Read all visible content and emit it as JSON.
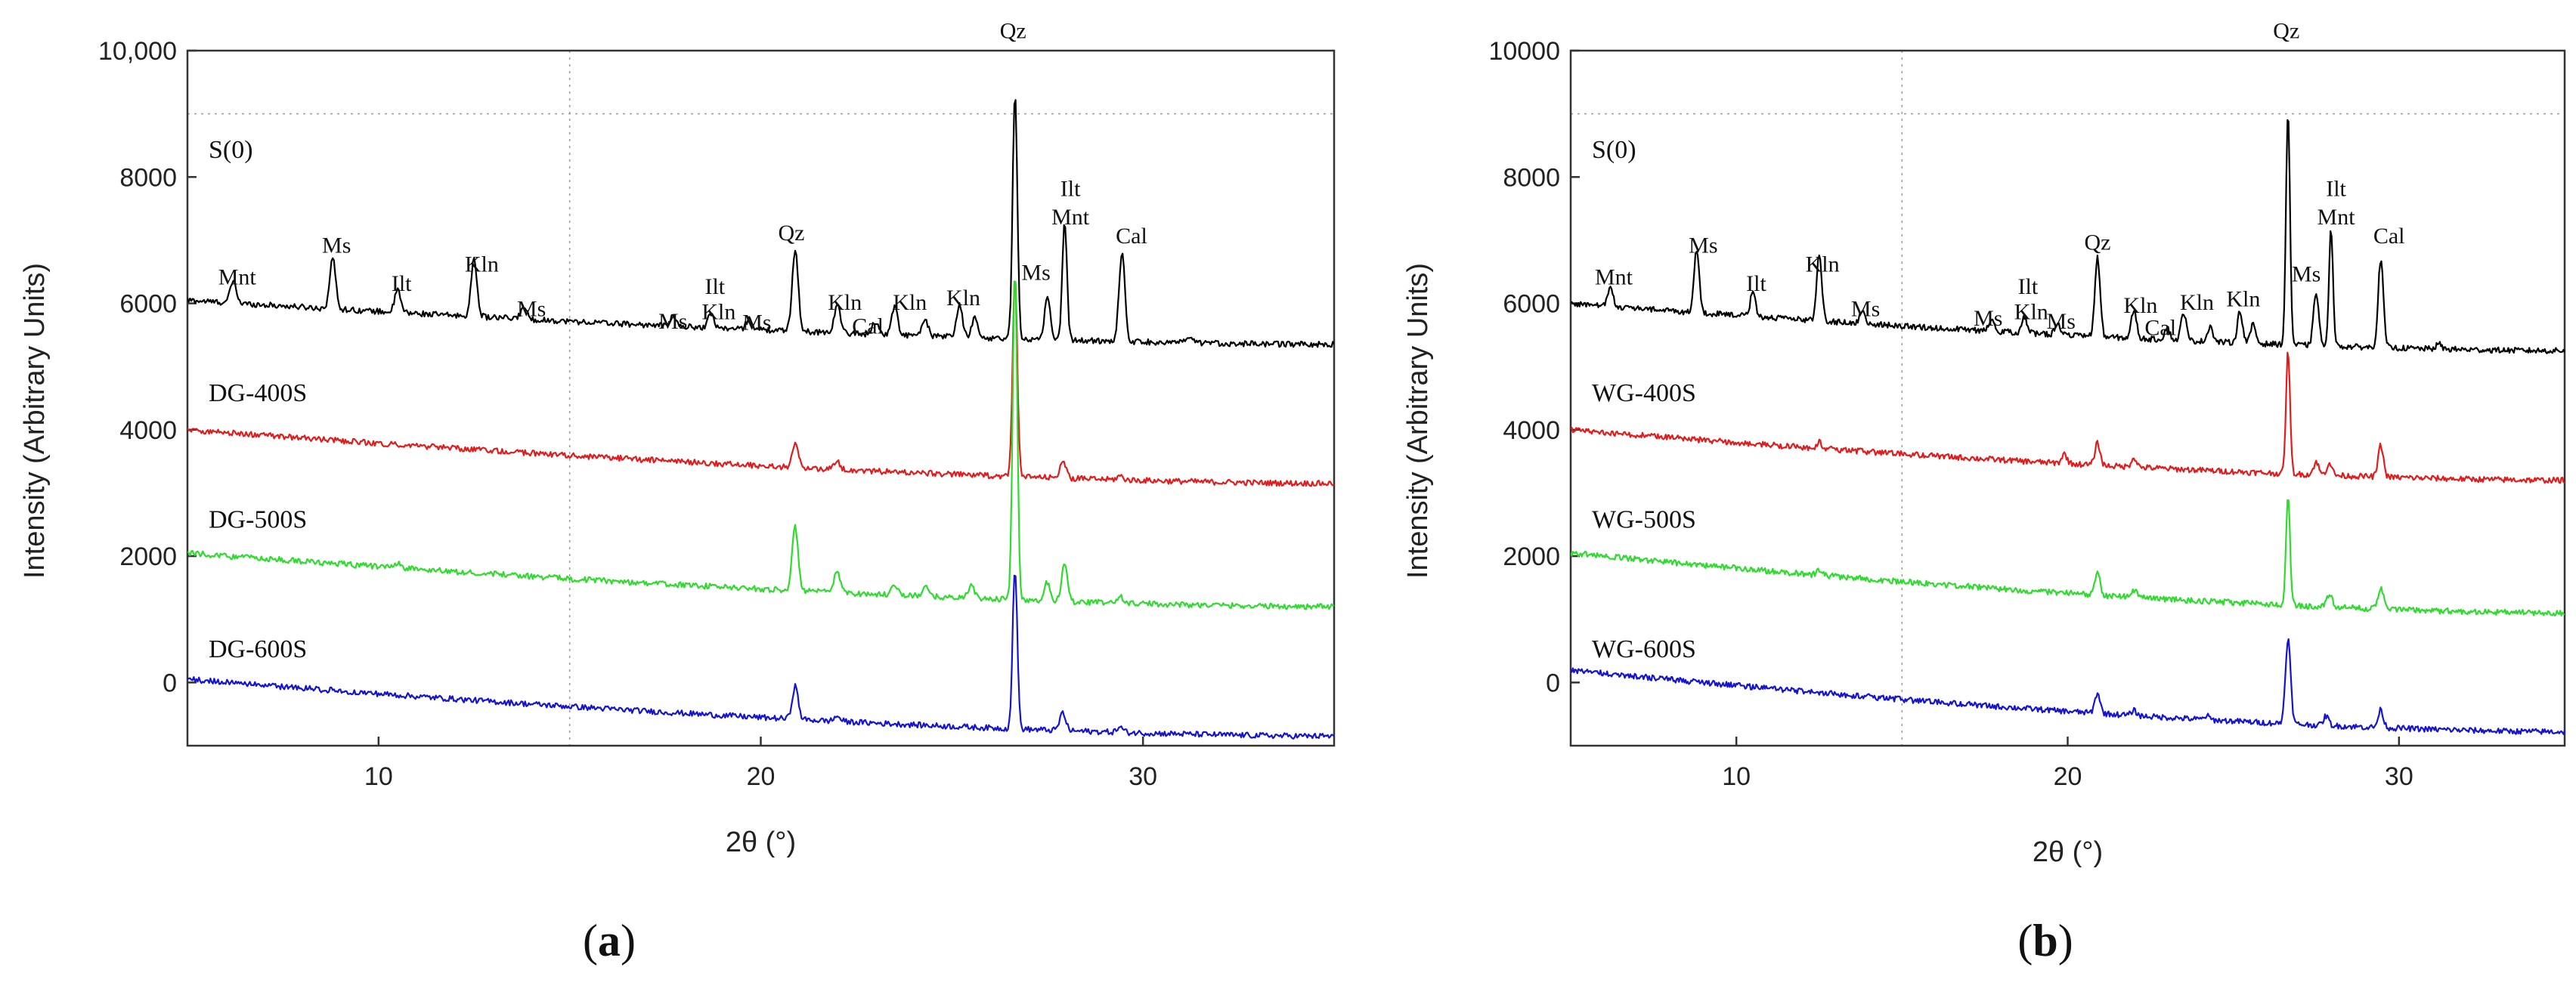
{
  "chart_data": [
    {
      "type": "line",
      "panel_label": "a",
      "xlabel": "2θ (°)",
      "ylabel": "Intensity (Arbitrary Units)",
      "xlim": [
        5,
        35
      ],
      "ylim": [
        -1000,
        10000
      ],
      "x_ticks": [
        10,
        20,
        30
      ],
      "x_tick_labels": [
        "10",
        "20",
        "30"
      ],
      "y_ticks": [
        0,
        2000,
        4000,
        6000,
        8000,
        10000
      ],
      "y_tick_labels": [
        "0",
        "2000",
        "4000",
        "6000",
        "8000",
        "10,000"
      ],
      "grid": true,
      "series": [
        {
          "name": "S(0)",
          "color": "#000000",
          "baseline_start": 6050,
          "baseline_end": 5350,
          "peaks": [
            [
              6.2,
              350
            ],
            [
              8.8,
              800
            ],
            [
              10.5,
              350
            ],
            [
              12.5,
              900
            ],
            [
              13.8,
              200
            ],
            [
              17.7,
              150
            ],
            [
              18.7,
              220
            ],
            [
              19.7,
              180
            ],
            [
              20.9,
              1300
            ],
            [
              22.0,
              450
            ],
            [
              23.0,
              200
            ],
            [
              23.5,
              450
            ],
            [
              24.3,
              250
            ],
            [
              25.2,
              500
            ],
            [
              25.6,
              300
            ],
            [
              26.65,
              3900
            ],
            [
              27.5,
              650
            ],
            [
              27.95,
              1900
            ],
            [
              29.45,
              1400
            ],
            [
              31.2,
              80
            ]
          ]
        },
        {
          "name": "DG-400S",
          "color": "#e11c1c",
          "baseline_start": 4000,
          "baseline_end": 3150,
          "peaks": [
            [
              20.9,
              380
            ],
            [
              22.0,
              120
            ],
            [
              26.65,
              3200
            ],
            [
              27.9,
              280
            ],
            [
              29.4,
              60
            ]
          ]
        },
        {
          "name": "DG-500S",
          "color": "#2edb2e",
          "baseline_start": 2050,
          "baseline_end": 1200,
          "peaks": [
            [
              10.5,
              80
            ],
            [
              20.9,
              1000
            ],
            [
              22.0,
              350
            ],
            [
              23.5,
              180
            ],
            [
              24.3,
              150
            ],
            [
              25.5,
              200
            ],
            [
              26.65,
              5200
            ],
            [
              27.5,
              300
            ],
            [
              27.95,
              600
            ],
            [
              29.4,
              100
            ]
          ]
        },
        {
          "name": "DG-600S",
          "color": "#1414d2",
          "baseline_start": 50,
          "baseline_end": -850,
          "peaks": [
            [
              20.9,
              520
            ],
            [
              22.0,
              80
            ],
            [
              26.65,
              2550
            ],
            [
              27.9,
              280
            ],
            [
              29.4,
              80
            ]
          ]
        }
      ],
      "annotations": [
        {
          "text": "Mnt",
          "x": 6.3,
          "y": 6300
        },
        {
          "text": "Ms",
          "x": 8.9,
          "y": 6800
        },
        {
          "text": "Ilt",
          "x": 10.6,
          "y": 6200
        },
        {
          "text": "Kln",
          "x": 12.7,
          "y": 6500
        },
        {
          "text": "Ms",
          "x": 14.0,
          "y": 5800
        },
        {
          "text": "Ms",
          "x": 17.7,
          "y": 5600
        },
        {
          "text": "Ilt",
          "x": 18.8,
          "y": 6150
        },
        {
          "text": "Kln",
          "x": 18.9,
          "y": 5750
        },
        {
          "text": "Ms",
          "x": 19.9,
          "y": 5580
        },
        {
          "text": "Qz",
          "x": 20.8,
          "y": 7000
        },
        {
          "text": "Kln",
          "x": 22.2,
          "y": 5900
        },
        {
          "text": "Cal",
          "x": 22.8,
          "y": 5520
        },
        {
          "text": "Kln",
          "x": 23.9,
          "y": 5900
        },
        {
          "text": "Kln",
          "x": 25.3,
          "y": 5970
        },
        {
          "text": "Qz",
          "x": 26.6,
          "y": 10200
        },
        {
          "text": "Ms",
          "x": 27.2,
          "y": 6370
        },
        {
          "text": "Ilt",
          "x": 28.1,
          "y": 7700
        },
        {
          "text": "Mnt",
          "x": 28.1,
          "y": 7250
        },
        {
          "text": "Cal",
          "x": 29.7,
          "y": 6950
        }
      ]
    },
    {
      "type": "line",
      "panel_label": "b",
      "xlabel": "2θ (°)",
      "ylabel": "Intensity (Arbitrary Units)",
      "xlim": [
        5,
        35
      ],
      "ylim": [
        -1000,
        10000
      ],
      "x_ticks": [
        10,
        20,
        30
      ],
      "x_tick_labels": [
        "10",
        "20",
        "30"
      ],
      "y_ticks": [
        0,
        2000,
        4000,
        6000,
        8000,
        10000
      ],
      "y_tick_labels": [
        "0",
        "2000",
        "4000",
        "6000",
        "8000",
        "10000"
      ],
      "grid": true,
      "series": [
        {
          "name": "S(0)",
          "color": "#000000",
          "baseline_start": 6000,
          "baseline_end": 5250,
          "peaks": [
            [
              6.2,
              300
            ],
            [
              8.8,
              1000
            ],
            [
              10.5,
              400
            ],
            [
              12.5,
              1050
            ],
            [
              13.8,
              200
            ],
            [
              17.7,
              200
            ],
            [
              18.7,
              250
            ],
            [
              19.7,
              200
            ],
            [
              20.9,
              1250
            ],
            [
              22.0,
              450
            ],
            [
              23.0,
              200
            ],
            [
              23.5,
              450
            ],
            [
              24.3,
              250
            ],
            [
              25.2,
              500
            ],
            [
              25.6,
              300
            ],
            [
              26.65,
              3700
            ],
            [
              27.5,
              850
            ],
            [
              27.95,
              1850
            ],
            [
              29.45,
              1400
            ],
            [
              31.2,
              80
            ]
          ]
        },
        {
          "name": "WG-400S",
          "color": "#e11c1c",
          "baseline_start": 4000,
          "baseline_end": 3200,
          "peaks": [
            [
              12.5,
              100
            ],
            [
              19.9,
              150
            ],
            [
              20.9,
              350
            ],
            [
              22.0,
              150
            ],
            [
              26.65,
              1950
            ],
            [
              27.5,
              200
            ],
            [
              27.9,
              200
            ],
            [
              29.45,
              500
            ]
          ]
        },
        {
          "name": "WG-500S",
          "color": "#2edb2e",
          "baseline_start": 2050,
          "baseline_end": 1100,
          "peaks": [
            [
              12.5,
              80
            ],
            [
              20.9,
              350
            ],
            [
              22.0,
              120
            ],
            [
              26.65,
              1750
            ],
            [
              27.9,
              200
            ],
            [
              29.45,
              350
            ]
          ]
        },
        {
          "name": "WG-600S",
          "color": "#1414d2",
          "baseline_start": 200,
          "baseline_end": -780,
          "peaks": [
            [
              20.9,
              320
            ],
            [
              22.0,
              80
            ],
            [
              24.2,
              60
            ],
            [
              26.65,
              1350
            ],
            [
              27.8,
              150
            ],
            [
              29.45,
              280
            ]
          ]
        }
      ],
      "annotations": [
        {
          "text": "Mnt",
          "x": 6.3,
          "y": 6300
        },
        {
          "text": "Ms",
          "x": 9.0,
          "y": 6800
        },
        {
          "text": "Ilt",
          "x": 10.6,
          "y": 6200
        },
        {
          "text": "Kln",
          "x": 12.6,
          "y": 6500
        },
        {
          "text": "Ms",
          "x": 13.9,
          "y": 5800
        },
        {
          "text": "Ms",
          "x": 17.6,
          "y": 5650
        },
        {
          "text": "Ilt",
          "x": 18.8,
          "y": 6150
        },
        {
          "text": "Kln",
          "x": 18.9,
          "y": 5750
        },
        {
          "text": "Ms",
          "x": 19.8,
          "y": 5600
        },
        {
          "text": "Qz",
          "x": 20.9,
          "y": 6850
        },
        {
          "text": "Kln",
          "x": 22.2,
          "y": 5850
        },
        {
          "text": "Cal",
          "x": 22.8,
          "y": 5500
        },
        {
          "text": "Kln",
          "x": 23.9,
          "y": 5900
        },
        {
          "text": "Kln",
          "x": 25.3,
          "y": 5950
        },
        {
          "text": "Qz",
          "x": 26.6,
          "y": 10200
        },
        {
          "text": "Ms",
          "x": 27.2,
          "y": 6350
        },
        {
          "text": "Ilt",
          "x": 28.1,
          "y": 7700
        },
        {
          "text": "Mnt",
          "x": 28.1,
          "y": 7250
        },
        {
          "text": "Cal",
          "x": 29.7,
          "y": 6950
        }
      ]
    }
  ]
}
